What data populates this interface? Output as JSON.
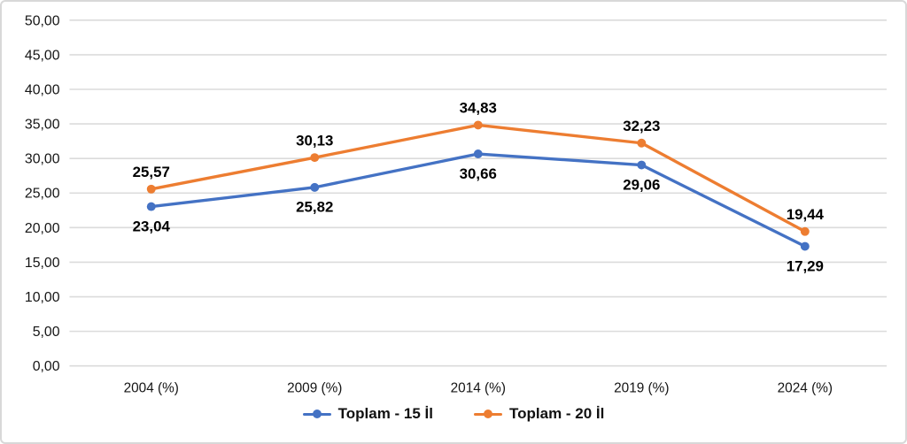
{
  "panel": {
    "background": "#ffffff",
    "border_color": "#d8d8d8"
  },
  "chart_data": {
    "type": "line",
    "title": "",
    "xlabel": "",
    "ylabel": "",
    "categories": [
      "2004 (%)",
      "2009 (%)",
      "2014 (%)",
      "2019 (%)",
      "2024 (%)"
    ],
    "series": [
      {
        "name": "Toplam - 15 İl",
        "color": "#4472C4",
        "values": [
          23.04,
          25.82,
          30.66,
          29.06,
          17.29
        ],
        "labels": [
          "23,04",
          "25,82",
          "30,66",
          "29,06",
          "17,29"
        ],
        "label_position": "below"
      },
      {
        "name": "Toplam - 20 İl",
        "color": "#ED7D31",
        "values": [
          25.57,
          30.13,
          34.83,
          32.23,
          19.44
        ],
        "labels": [
          "25,57",
          "30,13",
          "34,83",
          "32,23",
          "19,44"
        ],
        "label_position": "above"
      }
    ],
    "ylim": [
      0,
      50
    ],
    "yticks": [
      {
        "v": 0,
        "label": "0,00"
      },
      {
        "v": 5,
        "label": "5,00"
      },
      {
        "v": 10,
        "label": "10,00"
      },
      {
        "v": 15,
        "label": "15,00"
      },
      {
        "v": 20,
        "label": "20,00"
      },
      {
        "v": 25,
        "label": "25,00"
      },
      {
        "v": 30,
        "label": "30,00"
      },
      {
        "v": 35,
        "label": "35,00"
      },
      {
        "v": 40,
        "label": "40,00"
      },
      {
        "v": 45,
        "label": "45,00"
      },
      {
        "v": 50,
        "label": "50,00"
      }
    ],
    "grid": true,
    "gridline_color": "#dbdbdb",
    "legend_position": "bottom"
  }
}
